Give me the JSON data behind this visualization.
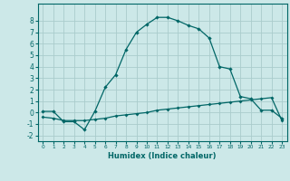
{
  "title": "",
  "xlabel": "Humidex (Indice chaleur)",
  "bg_color": "#cce8e8",
  "grid_color": "#aacccc",
  "line_color": "#006666",
  "line1_x": [
    0,
    1,
    2,
    3,
    4,
    5,
    6,
    7,
    8,
    9,
    10,
    11,
    12,
    13,
    14,
    15,
    16,
    17,
    18,
    19,
    20,
    21,
    22,
    23
  ],
  "line1_y": [
    0.1,
    0.1,
    -0.8,
    -0.8,
    -1.5,
    0.1,
    2.2,
    3.3,
    5.5,
    7.0,
    7.7,
    8.3,
    8.3,
    8.0,
    7.6,
    7.3,
    6.5,
    4.0,
    3.8,
    1.4,
    1.2,
    0.2,
    0.2,
    -0.5
  ],
  "line2_x": [
    0,
    1,
    2,
    3,
    4,
    5,
    6,
    7,
    8,
    9,
    10,
    11,
    12,
    13,
    14,
    15,
    16,
    17,
    18,
    19,
    20,
    21,
    22,
    23
  ],
  "line2_y": [
    -0.4,
    -0.5,
    -0.7,
    -0.7,
    -0.7,
    -0.6,
    -0.5,
    -0.3,
    -0.2,
    -0.1,
    0.0,
    0.2,
    0.3,
    0.4,
    0.5,
    0.6,
    0.7,
    0.8,
    0.9,
    1.0,
    1.1,
    1.2,
    1.3,
    -0.7
  ],
  "ylim": [
    -2.5,
    9.5
  ],
  "xlim": [
    -0.5,
    23.5
  ],
  "yticks": [
    -2,
    -1,
    0,
    1,
    2,
    3,
    4,
    5,
    6,
    7,
    8
  ],
  "xticks": [
    0,
    1,
    2,
    3,
    4,
    5,
    6,
    7,
    8,
    9,
    10,
    11,
    12,
    13,
    14,
    15,
    16,
    17,
    18,
    19,
    20,
    21,
    22,
    23
  ]
}
